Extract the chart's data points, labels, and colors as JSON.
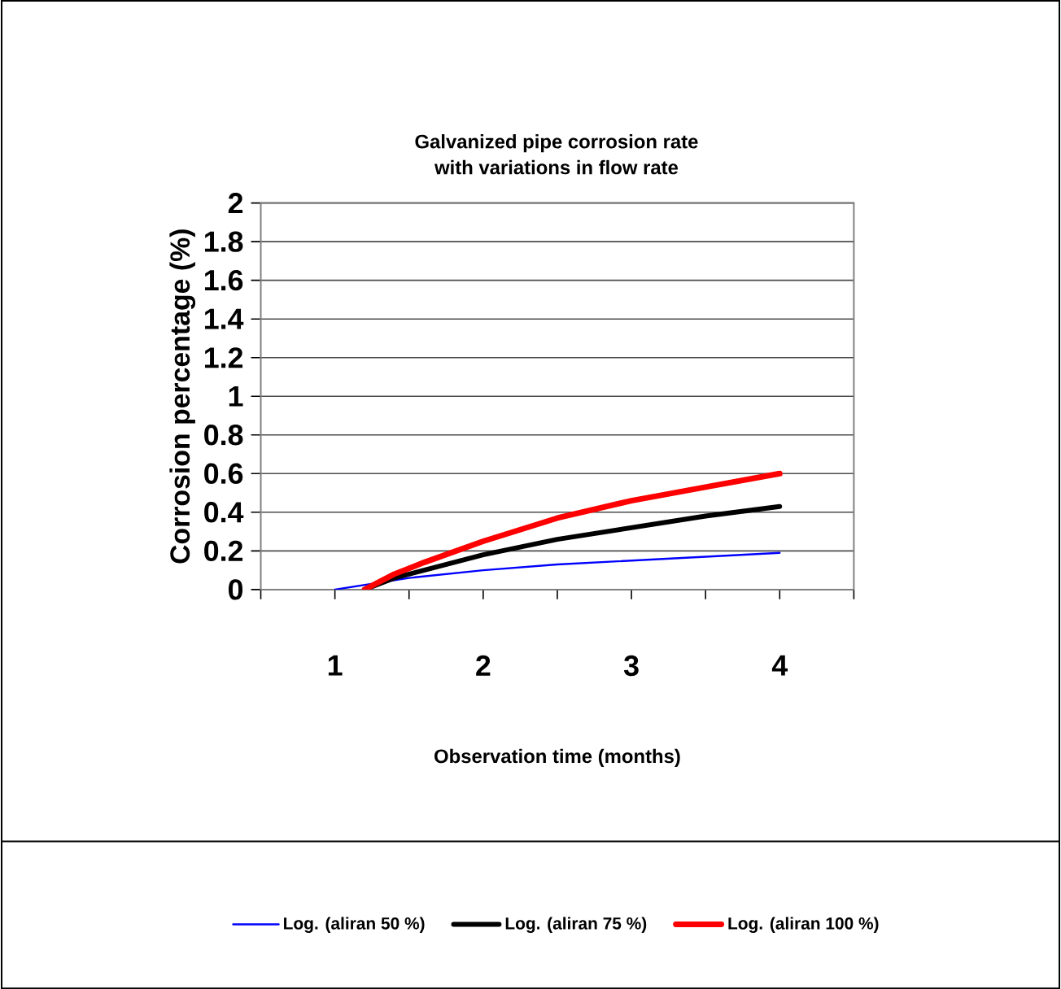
{
  "chart_data": {
    "type": "line",
    "title": "Galvanized pipe corrosion rate\nwith variations in flow rate",
    "xlabel": "Observation time (months)",
    "ylabel": "Corrosion percentage (%)",
    "xlim": [
      0.5,
      4.5
    ],
    "xticks": [
      {
        "value": 0.5,
        "label": null
      },
      1,
      {
        "value": 1.5,
        "label": null
      },
      2,
      {
        "value": 2.5,
        "label": null
      },
      3,
      {
        "value": 3.5,
        "label": null
      },
      4,
      {
        "value": 4.5,
        "label": null
      }
    ],
    "ylim": [
      0,
      2
    ],
    "yticks": [
      0,
      0.2,
      0.4,
      0.6,
      0.8,
      1,
      1.2,
      1.4,
      1.6,
      1.8,
      2
    ],
    "grid": "y",
    "legend": "bottom",
    "line_style": "solid",
    "series": [
      {
        "name": "Log. (aliran 50 %)",
        "color": "#0000ff",
        "x": [
          1,
          1.5,
          2,
          2.5,
          3,
          3.5,
          4
        ],
        "values": [
          0,
          0.06,
          0.1,
          0.13,
          0.15,
          0.17,
          0.19
        ]
      },
      {
        "name": "Log. (aliran 75 %)",
        "color": "#000000",
        "x": [
          1.2,
          1.4,
          1.6,
          2,
          2.5,
          3,
          3.5,
          4
        ],
        "values": [
          0,
          0.06,
          0.1,
          0.18,
          0.26,
          0.32,
          0.38,
          0.43
        ]
      },
      {
        "name": "Log. (aliran 100 %)",
        "color": "#ff0000",
        "x": [
          1.2,
          1.4,
          1.6,
          2,
          2.5,
          3,
          3.5,
          4
        ],
        "values": [
          0,
          0.08,
          0.14,
          0.25,
          0.37,
          0.46,
          0.53,
          0.6
        ]
      }
    ]
  }
}
